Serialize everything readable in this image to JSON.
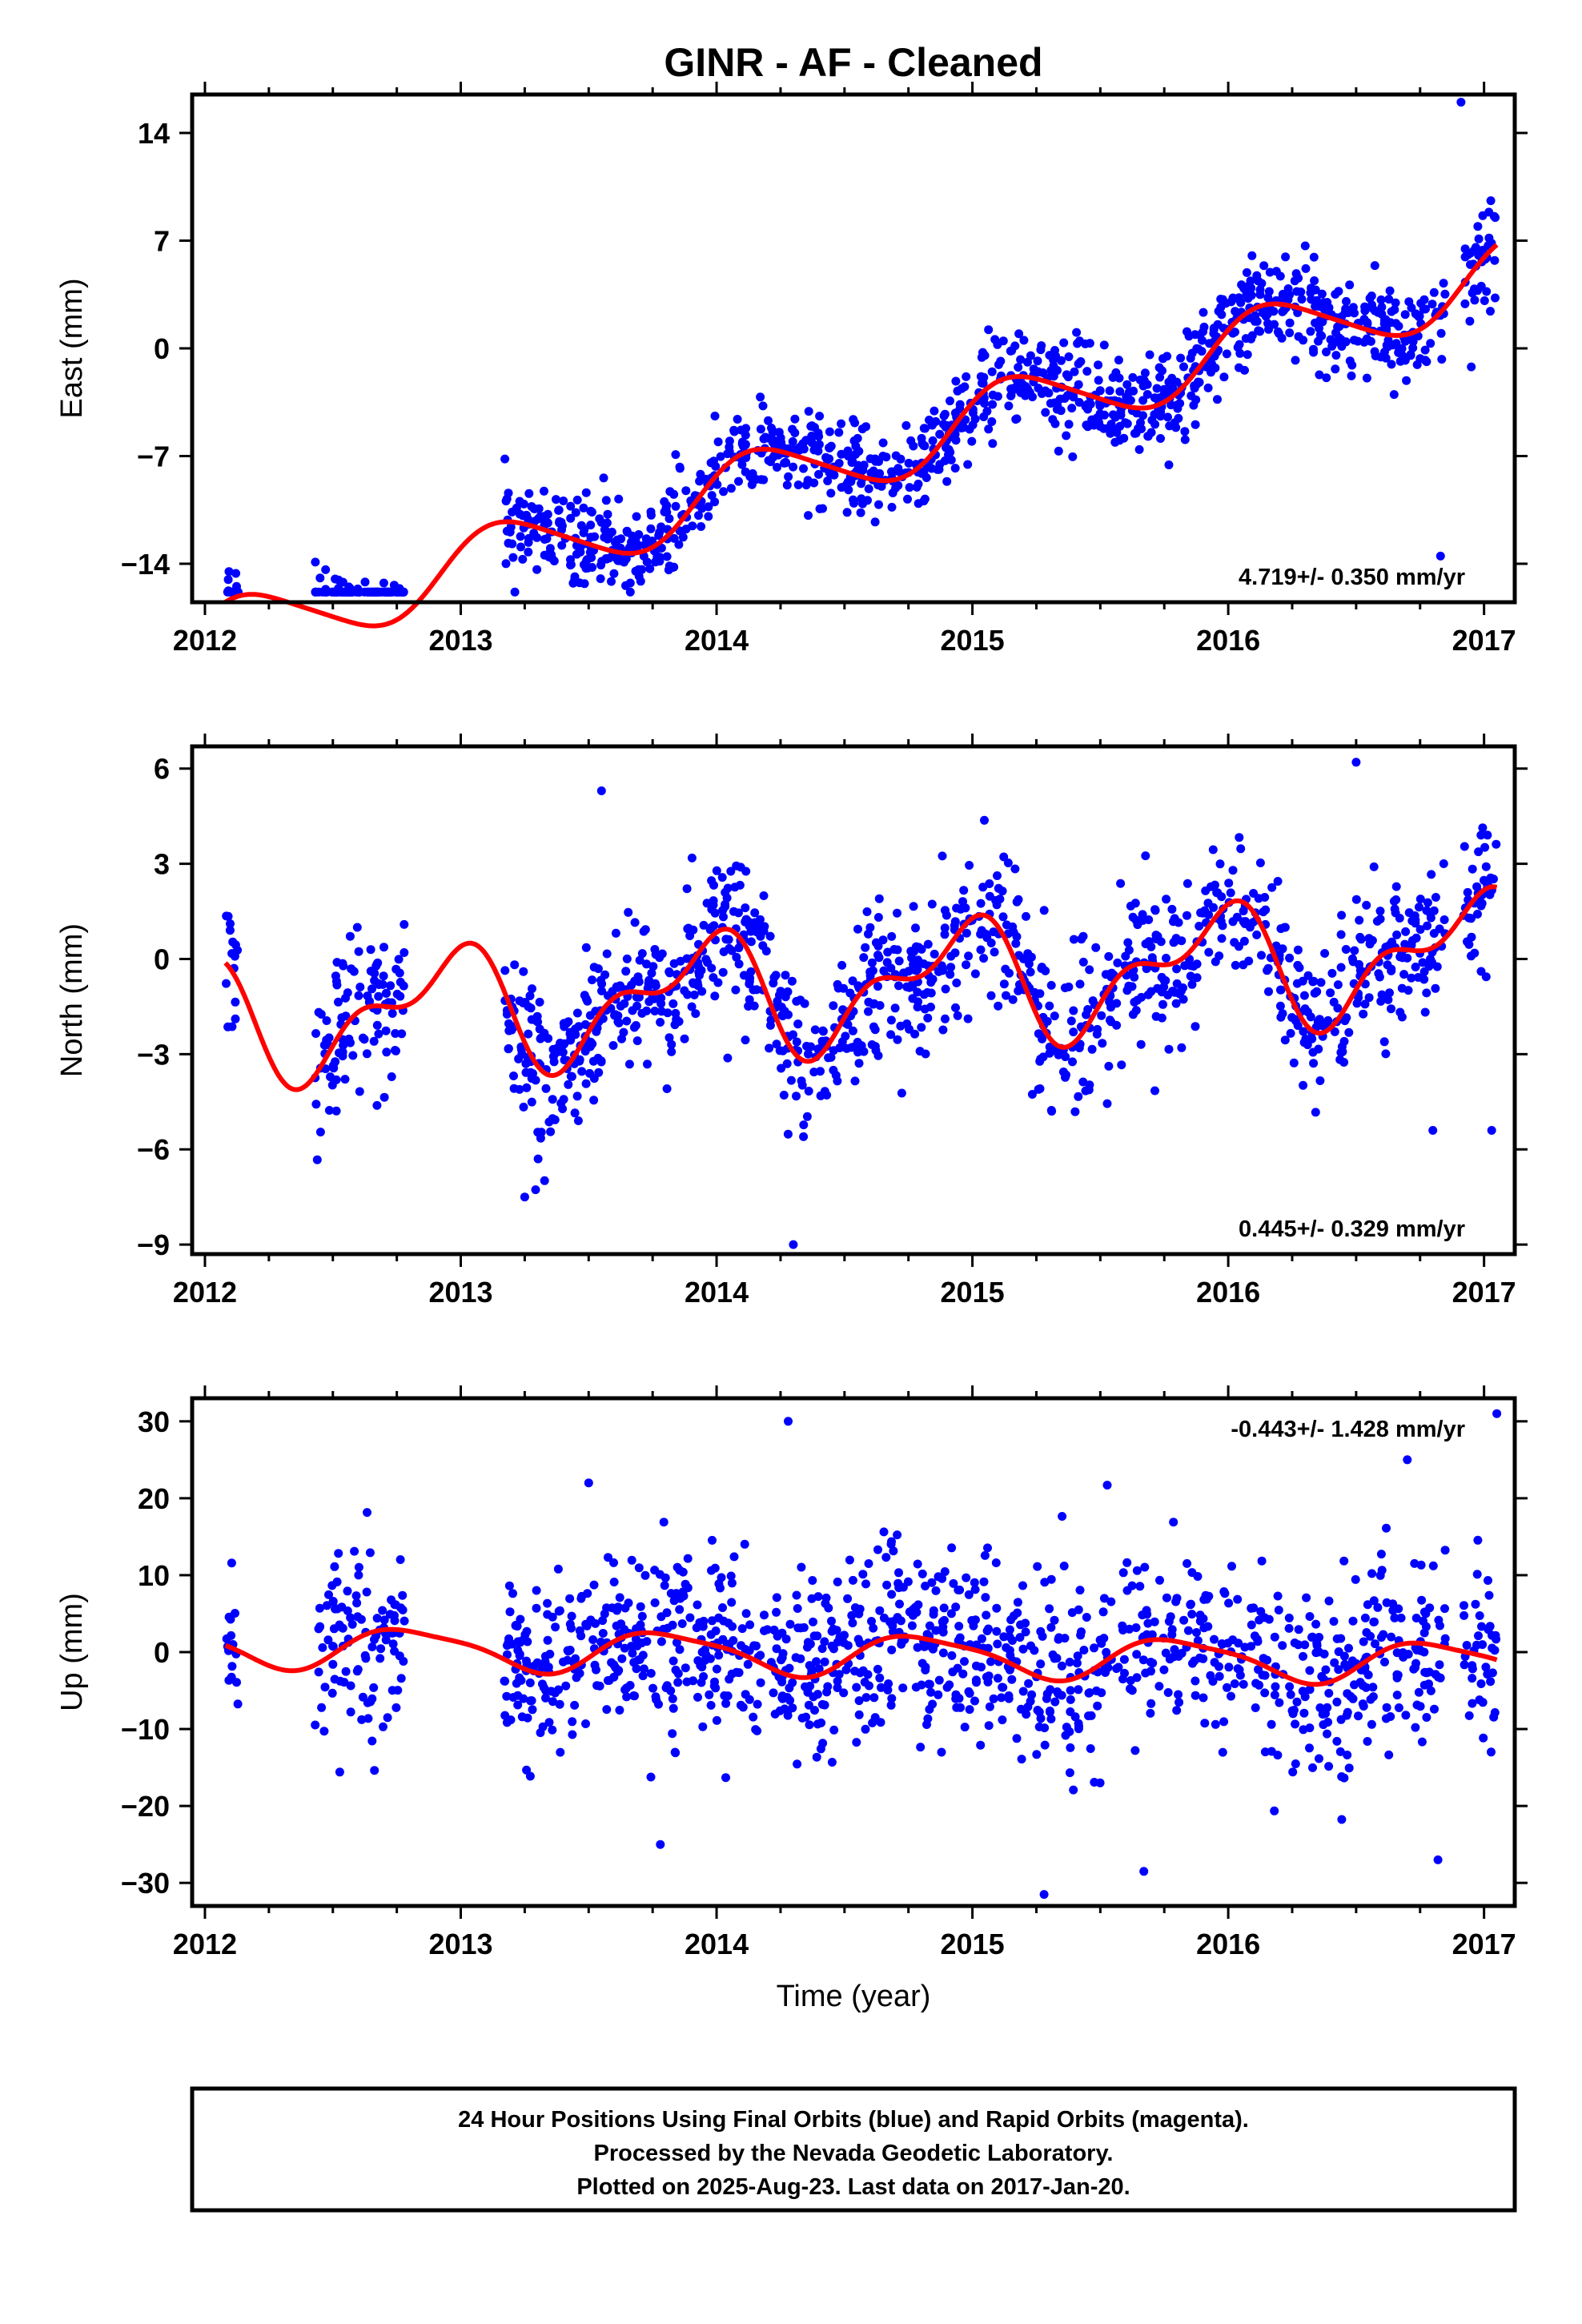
{
  "title": "GINR  - AF - Cleaned",
  "colors": {
    "points": "#0000ff",
    "model": "#ff0000",
    "frame": "#000000"
  },
  "xlabel": "Time (year)",
  "chart_data": [
    {
      "type": "scatter",
      "component": "east",
      "ylabel": "East (mm)",
      "xlim": [
        2011.95,
        2017.12
      ],
      "ylim": [
        -16.5,
        16.5
      ],
      "xticks": [
        2012,
        2013,
        2014,
        2015,
        2016,
        2017
      ],
      "xtick_labels": [
        "2012",
        "2013",
        "2014",
        "2015",
        "2016",
        "2017"
      ],
      "yticks": [
        -14,
        -7,
        0,
        7,
        14
      ],
      "ytick_labels": [
        "−14",
        "−7",
        "0",
        "7",
        "14"
      ],
      "rate_label": "4.719+/- 0.350 mm/yr",
      "model": {
        "name": "fit",
        "offset": -7.2,
        "rate": 4.719,
        "annual_amp": 2.2,
        "annual_phase": 0.5,
        "semi_amp": 0.3,
        "semi_phase": 1.0
      },
      "data_ranges": [
        [
          2012.08,
          2012.13
        ],
        [
          2012.43,
          2012.78
        ],
        [
          2013.17,
          2016.85
        ],
        [
          2016.92,
          2017.05
        ]
      ],
      "scatter_sd": 1.5,
      "outliers": [
        [
          2016.91,
          16.0
        ],
        [
          2016.83,
          -13.5
        ],
        [
          2012.75,
          -15.8
        ],
        [
          2013.35,
          -13.0
        ],
        [
          2016.62,
          0.2
        ],
        [
          2016.95,
          -1.2
        ]
      ]
    },
    {
      "type": "scatter",
      "component": "north",
      "ylabel": "North (mm)",
      "xlim": [
        2011.95,
        2017.12
      ],
      "ylim": [
        -9.3,
        6.7
      ],
      "xticks": [
        2012,
        2013,
        2014,
        2015,
        2016,
        2017
      ],
      "xtick_labels": [
        "2012",
        "2013",
        "2014",
        "2015",
        "2016",
        "2017"
      ],
      "yticks": [
        -9,
        -6,
        -3,
        0,
        3,
        6
      ],
      "ytick_labels": [
        "−9",
        "−6",
        "−3",
        "0",
        "3",
        "6"
      ],
      "rate_label": "0.445+/- 0.329 mm/yr",
      "model": {
        "name": "fit",
        "offset": -0.9,
        "rate": 0.445,
        "annual_amp": 1.6,
        "annual_phase": 2.0,
        "semi_amp": 0.9,
        "semi_phase": 0.6
      },
      "data_ranges": [
        [
          2012.08,
          2012.13
        ],
        [
          2012.43,
          2012.78
        ],
        [
          2013.17,
          2016.85
        ],
        [
          2016.92,
          2017.05
        ]
      ],
      "scatter_sd": 1.2,
      "outliers": [
        [
          2014.3,
          -9.0
        ],
        [
          2013.25,
          -7.5
        ],
        [
          2016.8,
          -5.4
        ],
        [
          2016.5,
          6.2
        ],
        [
          2017.03,
          -5.4
        ],
        [
          2013.55,
          5.3
        ]
      ]
    },
    {
      "type": "scatter",
      "component": "up",
      "ylabel": "Up (mm)",
      "xlim": [
        2011.95,
        2017.12
      ],
      "ylim": [
        -33,
        33
      ],
      "xticks": [
        2012,
        2013,
        2014,
        2015,
        2016,
        2017
      ],
      "xtick_labels": [
        "2012",
        "2013",
        "2014",
        "2015",
        "2016",
        "2017"
      ],
      "yticks": [
        -30,
        -20,
        -10,
        0,
        10,
        20,
        30
      ],
      "ytick_labels": [
        "−30",
        "−20",
        "−10",
        "0",
        "10",
        "20",
        "30"
      ],
      "rate_label": "-0.443+/- 1.428 mm/yr",
      "model": {
        "name": "fit",
        "offset": -0.3,
        "rate": -0.443,
        "annual_amp": 2.6,
        "annual_phase": 2.8,
        "semi_amp": 0.6,
        "semi_phase": 0.0
      },
      "data_ranges": [
        [
          2012.08,
          2012.13
        ],
        [
          2012.43,
          2012.78
        ],
        [
          2013.17,
          2016.85
        ],
        [
          2016.92,
          2017.05
        ]
      ],
      "scatter_sd": 6.0,
      "outliers": [
        [
          2014.28,
          30.0
        ],
        [
          2017.05,
          31.0
        ],
        [
          2015.28,
          -31.5
        ],
        [
          2013.78,
          -25.0
        ],
        [
          2016.82,
          -27.0
        ],
        [
          2015.67,
          -28.5
        ],
        [
          2013.5,
          22.0
        ],
        [
          2016.7,
          25.0
        ]
      ]
    }
  ],
  "footer": {
    "line1": "24 Hour Positions Using Final Orbits (blue) and Rapid Orbits (magenta).",
    "line2": "Processed by the Nevada Geodetic Laboratory.",
    "line3": "Plotted on 2025-Aug-23. Last data on 2017-Jan-20."
  }
}
